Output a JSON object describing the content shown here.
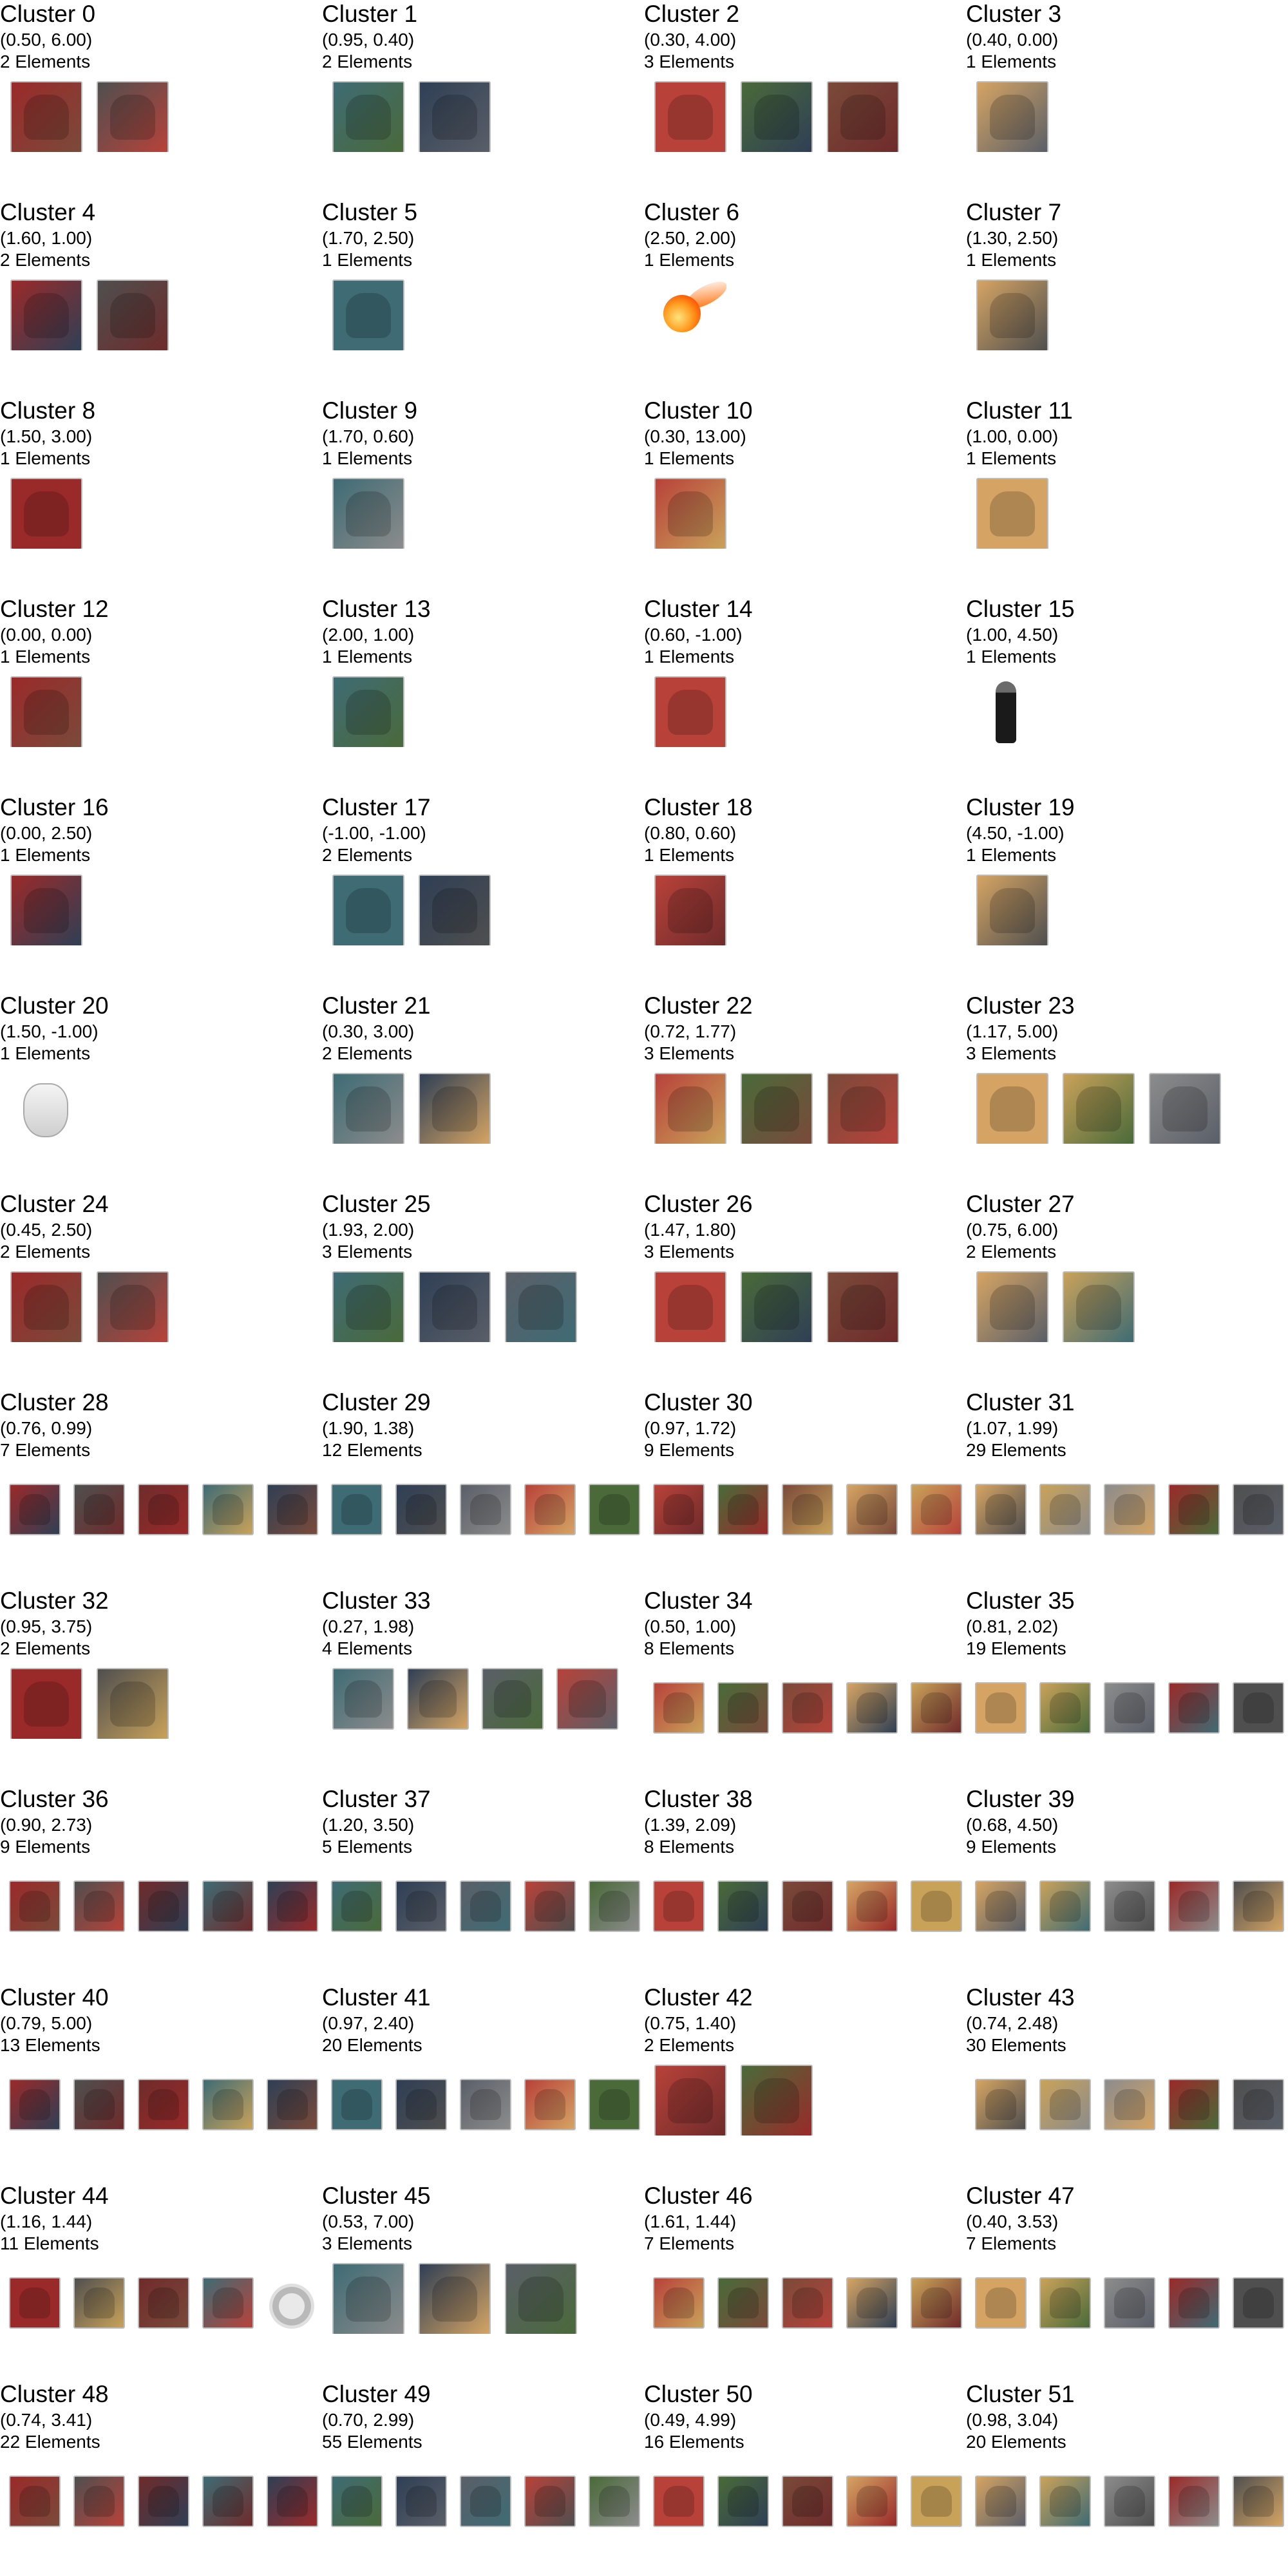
{
  "palette": [
    "#9a2a2a",
    "#5a5f68",
    "#c9a25a",
    "#3f6b74",
    "#7a4a3a",
    "#4f4f4f",
    "#b8423a",
    "#8c8c8c",
    "#2f3f55",
    "#d5a464",
    "#6f2b2b",
    "#4a6a3a"
  ],
  "clusters": [
    {
      "title": "Cluster 0",
      "coords": "(0.50, 6.00)",
      "count": "2 Elements",
      "n": 2
    },
    {
      "title": "Cluster 1",
      "coords": "(0.95, 0.40)",
      "count": "2 Elements",
      "n": 2
    },
    {
      "title": "Cluster 2",
      "coords": "(0.30, 4.00)",
      "count": "3 Elements",
      "n": 3
    },
    {
      "title": "Cluster 3",
      "coords": "(0.40, 0.00)",
      "count": "1 Elements",
      "n": 1
    },
    {
      "title": "Cluster 4",
      "coords": "(1.60, 1.00)",
      "count": "2 Elements",
      "n": 2
    },
    {
      "title": "Cluster 5",
      "coords": "(1.70, 2.50)",
      "count": "1 Elements",
      "n": 1
    },
    {
      "title": "Cluster 6",
      "coords": "(2.50, 2.00)",
      "count": "1 Elements",
      "n": 1,
      "special": "fire-icon"
    },
    {
      "title": "Cluster 7",
      "coords": "(1.30, 2.50)",
      "count": "1 Elements",
      "n": 1
    },
    {
      "title": "Cluster 8",
      "coords": "(1.50, 3.00)",
      "count": "1 Elements",
      "n": 1
    },
    {
      "title": "Cluster 9",
      "coords": "(1.70, 0.60)",
      "count": "1 Elements",
      "n": 1
    },
    {
      "title": "Cluster 10",
      "coords": "(0.30, 13.00)",
      "count": "1 Elements",
      "n": 1
    },
    {
      "title": "Cluster 11",
      "coords": "(1.00, 0.00)",
      "count": "1 Elements",
      "n": 1
    },
    {
      "title": "Cluster 12",
      "coords": "(0.00, 0.00)",
      "count": "1 Elements",
      "n": 1
    },
    {
      "title": "Cluster 13",
      "coords": "(2.00, 1.00)",
      "count": "1 Elements",
      "n": 1
    },
    {
      "title": "Cluster 14",
      "coords": "(0.60, -1.00)",
      "count": "1 Elements",
      "n": 1
    },
    {
      "title": "Cluster 15",
      "coords": "(1.00, 4.50)",
      "count": "1 Elements",
      "n": 1,
      "special": "standing-figure-icon"
    },
    {
      "title": "Cluster 16",
      "coords": "(0.00, 2.50)",
      "count": "1 Elements",
      "n": 1
    },
    {
      "title": "Cluster 17",
      "coords": "(-1.00, -1.00)",
      "count": "2 Elements",
      "n": 2
    },
    {
      "title": "Cluster 18",
      "coords": "(0.80, 0.60)",
      "count": "1 Elements",
      "n": 1
    },
    {
      "title": "Cluster 19",
      "coords": "(4.50, -1.00)",
      "count": "1 Elements",
      "n": 1
    },
    {
      "title": "Cluster 20",
      "coords": "(1.50, -1.00)",
      "count": "1 Elements",
      "n": 1,
      "special": "mask-icon"
    },
    {
      "title": "Cluster 21",
      "coords": "(0.30, 3.00)",
      "count": "2 Elements",
      "n": 2
    },
    {
      "title": "Cluster 22",
      "coords": "(0.72, 1.77)",
      "count": "3 Elements",
      "n": 3
    },
    {
      "title": "Cluster 23",
      "coords": "(1.17, 5.00)",
      "count": "3 Elements",
      "n": 3
    },
    {
      "title": "Cluster 24",
      "coords": "(0.45, 2.50)",
      "count": "2 Elements",
      "n": 2
    },
    {
      "title": "Cluster 25",
      "coords": "(1.93, 2.00)",
      "count": "3 Elements",
      "n": 3
    },
    {
      "title": "Cluster 26",
      "coords": "(1.47, 1.80)",
      "count": "3 Elements",
      "n": 3
    },
    {
      "title": "Cluster 27",
      "coords": "(0.75, 6.00)",
      "count": "2 Elements",
      "n": 2
    },
    {
      "title": "Cluster 28",
      "coords": "(0.76, 0.99)",
      "count": "7 Elements",
      "n": 5,
      "small": true
    },
    {
      "title": "Cluster 29",
      "coords": "(1.90, 1.38)",
      "count": "12 Elements",
      "n": 5,
      "small": true
    },
    {
      "title": "Cluster 30",
      "coords": "(0.97, 1.72)",
      "count": "9 Elements",
      "n": 5,
      "small": true
    },
    {
      "title": "Cluster 31",
      "coords": "(1.07, 1.99)",
      "count": "29 Elements",
      "n": 5,
      "small": true
    },
    {
      "title": "Cluster 32",
      "coords": "(0.95, 3.75)",
      "count": "2 Elements",
      "n": 2
    },
    {
      "title": "Cluster 33",
      "coords": "(0.27, 1.98)",
      "count": "4 Elements",
      "n": 4,
      "medium": true
    },
    {
      "title": "Cluster 34",
      "coords": "(0.50, 1.00)",
      "count": "8 Elements",
      "n": 5,
      "small": true
    },
    {
      "title": "Cluster 35",
      "coords": "(0.81, 2.02)",
      "count": "19 Elements",
      "n": 5,
      "small": true
    },
    {
      "title": "Cluster 36",
      "coords": "(0.90, 2.73)",
      "count": "9 Elements",
      "n": 5,
      "small": true
    },
    {
      "title": "Cluster 37",
      "coords": "(1.20, 3.50)",
      "count": "5 Elements",
      "n": 5,
      "small": true
    },
    {
      "title": "Cluster 38",
      "coords": "(1.39, 2.09)",
      "count": "8 Elements",
      "n": 5,
      "small": true
    },
    {
      "title": "Cluster 39",
      "coords": "(0.68, 4.50)",
      "count": "9 Elements",
      "n": 5,
      "small": true
    },
    {
      "title": "Cluster 40",
      "coords": "(0.79, 5.00)",
      "count": "13 Elements",
      "n": 5,
      "small": true
    },
    {
      "title": "Cluster 41",
      "coords": "(0.97, 2.40)",
      "count": "20 Elements",
      "n": 5,
      "small": true
    },
    {
      "title": "Cluster 42",
      "coords": "(0.75, 1.40)",
      "count": "2 Elements",
      "n": 2
    },
    {
      "title": "Cluster 43",
      "coords": "(0.74, 2.48)",
      "count": "30 Elements",
      "n": 5,
      "small": true
    },
    {
      "title": "Cluster 44",
      "coords": "(1.16, 1.44)",
      "count": "11 Elements",
      "n": 5,
      "small": true,
      "special_last": "medal-icon"
    },
    {
      "title": "Cluster 45",
      "coords": "(0.53, 7.00)",
      "count": "3 Elements",
      "n": 3
    },
    {
      "title": "Cluster 46",
      "coords": "(1.61, 1.44)",
      "count": "7 Elements",
      "n": 5,
      "small": true
    },
    {
      "title": "Cluster 47",
      "coords": "(0.40, 3.53)",
      "count": "7 Elements",
      "n": 5,
      "small": true
    },
    {
      "title": "Cluster 48",
      "coords": "(0.74, 3.41)",
      "count": "22 Elements",
      "n": 5,
      "small": true
    },
    {
      "title": "Cluster 49",
      "coords": "(0.70, 2.99)",
      "count": "55 Elements",
      "n": 5,
      "small": true
    },
    {
      "title": "Cluster 50",
      "coords": "(0.49, 4.99)",
      "count": "16 Elements",
      "n": 5,
      "small": true
    },
    {
      "title": "Cluster 51",
      "coords": "(0.98, 3.04)",
      "count": "20 Elements",
      "n": 5,
      "small": true
    }
  ]
}
